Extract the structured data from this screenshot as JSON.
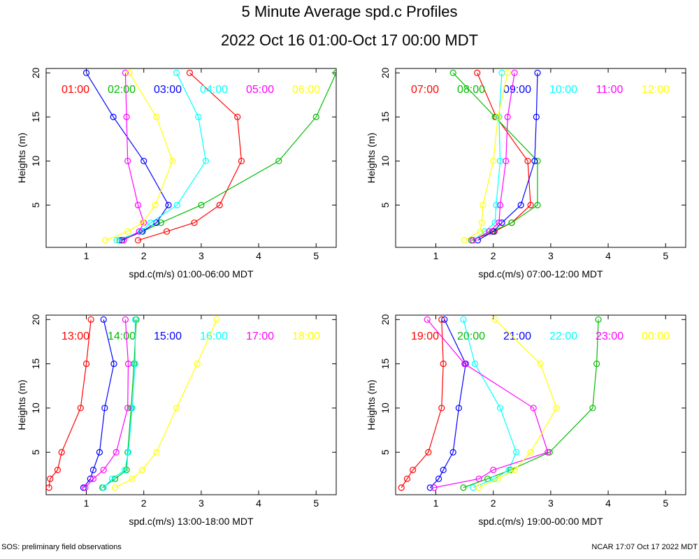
{
  "title": "5 Minute Average spd.c Profiles",
  "subtitle": "2022 Oct 16 01:00-Oct 17 00:00 MDT",
  "footer_left": "SOS: preliminary field observations",
  "footer_right": "NCAR 17:07 Oct 17 2022 MDT",
  "colors": [
    "#ff0000",
    "#00bb00",
    "#0000ff",
    "#00ffff",
    "#ff00ff",
    "#ffff00"
  ],
  "chart_data": [
    {
      "type": "line",
      "xlabel": "spd.c(m/s) 01:00-06:00 MDT",
      "ylabel": "Heights (m)",
      "xlim": [
        0.3,
        5.35
      ],
      "ylim": [
        0.2,
        20.5
      ],
      "xticks": [
        1,
        2,
        3,
        4,
        5
      ],
      "yticks": [
        5,
        10,
        15,
        20
      ],
      "heights": [
        1,
        2,
        3,
        5,
        10,
        15,
        20
      ],
      "series": [
        {
          "name": "01:00",
          "values": [
            1.9,
            2.4,
            2.88,
            3.32,
            3.7,
            3.63,
            2.8
          ]
        },
        {
          "name": "02:00",
          "values": [
            1.58,
            1.98,
            2.3,
            3.0,
            4.35,
            5.0,
            5.35
          ]
        },
        {
          "name": "03:00",
          "values": [
            1.62,
            1.97,
            2.22,
            2.43,
            2.0,
            1.47,
            1.0
          ]
        },
        {
          "name": "04:00",
          "values": [
            1.53,
            1.95,
            2.12,
            2.58,
            3.08,
            2.95,
            2.57
          ]
        },
        {
          "name": "05:00",
          "values": [
            1.65,
            1.92,
            2.0,
            1.9,
            1.72,
            1.7,
            1.68
          ]
        },
        {
          "name": "06:00",
          "values": [
            1.33,
            1.72,
            1.98,
            2.2,
            2.5,
            2.22,
            1.75
          ]
        }
      ]
    },
    {
      "type": "line",
      "xlabel": "spd.c(m/s) 07:00-12:00 MDT",
      "ylabel": "Heights (m)",
      "xlim": [
        0.3,
        5.35
      ],
      "ylim": [
        0.2,
        20.5
      ],
      "xticks": [
        1,
        2,
        3,
        4,
        5
      ],
      "yticks": [
        5,
        10,
        15,
        20
      ],
      "heights": [
        1,
        2,
        3,
        5,
        10,
        15,
        20
      ],
      "series": [
        {
          "name": "07:00",
          "values": [
            1.62,
            2.02,
            2.32,
            2.65,
            2.6,
            2.05,
            1.72
          ]
        },
        {
          "name": "08:00",
          "values": [
            1.62,
            1.98,
            2.32,
            2.77,
            2.77,
            2.03,
            1.3
          ]
        },
        {
          "name": "09:00",
          "values": [
            1.73,
            2.0,
            2.15,
            2.48,
            2.72,
            2.75,
            2.77
          ]
        },
        {
          "name": "10:00",
          "values": [
            1.65,
            1.85,
            2.03,
            2.05,
            2.12,
            2.1,
            2.15
          ]
        },
        {
          "name": "11:00",
          "values": [
            1.65,
            1.93,
            2.1,
            2.12,
            2.22,
            2.25,
            2.37
          ]
        },
        {
          "name": "12:00",
          "values": [
            1.5,
            1.77,
            1.8,
            1.82,
            2.0,
            2.08,
            2.25
          ]
        }
      ]
    },
    {
      "type": "line",
      "xlabel": "spd.c(m/s) 13:00-18:00 MDT",
      "ylabel": "Heights (m)",
      "xlim": [
        0.3,
        5.35
      ],
      "ylim": [
        0.2,
        20.5
      ],
      "xticks": [
        1,
        2,
        3,
        4,
        5
      ],
      "yticks": [
        5,
        10,
        15,
        20
      ],
      "heights": [
        1,
        2,
        3,
        5,
        10,
        15,
        20
      ],
      "series": [
        {
          "name": "13:00",
          "values": [
            0.35,
            0.37,
            0.5,
            0.57,
            0.9,
            1.0,
            1.08
          ]
        },
        {
          "name": "14:00",
          "values": [
            1.28,
            1.5,
            1.7,
            1.72,
            1.78,
            1.83,
            1.87
          ]
        },
        {
          "name": "15:00",
          "values": [
            0.95,
            1.07,
            1.12,
            1.23,
            1.32,
            1.48,
            1.3
          ]
        },
        {
          "name": "16:00",
          "values": [
            1.3,
            1.45,
            1.67,
            1.73,
            1.8,
            1.85,
            1.85
          ]
        },
        {
          "name": "17:00",
          "values": [
            0.98,
            1.12,
            1.3,
            1.52,
            1.72,
            1.73,
            1.68
          ]
        },
        {
          "name": "18:00",
          "values": [
            1.5,
            1.8,
            1.97,
            2.22,
            2.57,
            2.93,
            3.27
          ]
        }
      ]
    },
    {
      "type": "line",
      "xlabel": "spd.c(m/s) 19:00-00:00 MDT",
      "ylabel": "Heights (m)",
      "xlim": [
        0.3,
        5.35
      ],
      "ylim": [
        0.2,
        20.5
      ],
      "xticks": [
        1,
        2,
        3,
        4,
        5
      ],
      "yticks": [
        5,
        10,
        15,
        20
      ],
      "heights": [
        1,
        2,
        3,
        5,
        10,
        15,
        20
      ],
      "series": [
        {
          "name": "19:00",
          "values": [
            0.4,
            0.5,
            0.6,
            0.87,
            1.1,
            1.13,
            1.1
          ]
        },
        {
          "name": "20:00",
          "values": [
            1.48,
            1.9,
            2.3,
            2.98,
            3.73,
            3.8,
            3.83
          ]
        },
        {
          "name": "21:00",
          "values": [
            0.9,
            1.05,
            1.13,
            1.3,
            1.4,
            1.52,
            1.15
          ]
        },
        {
          "name": "22:00",
          "values": [
            1.65,
            2.02,
            2.27,
            2.4,
            2.12,
            1.68,
            1.48
          ]
        },
        {
          "name": "23:00",
          "values": [
            0.97,
            1.75,
            2.0,
            2.95,
            2.7,
            1.5,
            0.85
          ]
        },
        {
          "name": "00:00",
          "values": [
            1.75,
            2.08,
            2.37,
            2.65,
            3.1,
            2.82,
            2.03
          ]
        }
      ]
    }
  ]
}
